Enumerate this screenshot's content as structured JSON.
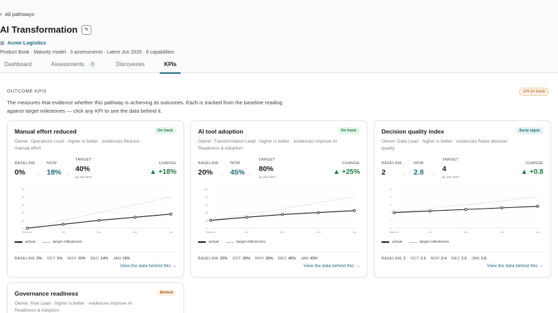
{
  "nav": {
    "back_label": "All pathways"
  },
  "header": {
    "title": "AI Transformation",
    "org": "Acme Logistics",
    "meta": "Product Book · Maturity model · 3 assessments · Latest Jun 2026 · 6 capabilities"
  },
  "tabs": [
    {
      "label": "Dashboard",
      "count": null
    },
    {
      "label": "Assessments",
      "count": "3"
    },
    {
      "label": "Discoveries",
      "count": null
    },
    {
      "label": "KPIs",
      "count": null,
      "active": true
    }
  ],
  "section": {
    "label": "OUTCOME KPIS",
    "badge": "2/4 on track",
    "intro": "The measures that evidence whether this pathway is achieving its outcomes. Each is tracked from the baseline reading against target milestones — click any KPI to see the data behind it."
  },
  "labels": {
    "baseline": "BASELINE",
    "now": "NOW",
    "target": "TARGET",
    "change": "CHANGE",
    "legend_actual": "actual",
    "legend_target": "target milestones",
    "view_link": "View the data behind this →"
  },
  "colors": {
    "accent": "#1f6c7a",
    "positive": "#1d7a43",
    "warning": "#a45a14"
  },
  "cards": [
    {
      "title": "Manual effort reduced",
      "status": "On track",
      "status_kind": "green",
      "owner": "Owner: Operations Lead · higher is better · evidences Reduce manual effort",
      "baseline": "0%",
      "now": "18%",
      "target": "40%",
      "target_by": "by Jan 2027",
      "change": "▲ +18%",
      "readings": [
        {
          "k": "BASELINE",
          "v": "0%"
        },
        {
          "k": "OCT",
          "v": "5%"
        },
        {
          "k": "NOV",
          "v": "10%"
        },
        {
          "k": "DEC",
          "v": "14%"
        },
        {
          "k": "JAN",
          "v": "18%"
        }
      ],
      "chart_data": {
        "type": "line",
        "x": [
          "Baseline",
          "Oct",
          "Nov",
          "Dec",
          "Jan"
        ],
        "series": [
          {
            "name": "actual",
            "values": [
              0,
              5,
              10,
              14,
              18
            ]
          },
          {
            "name": "target milestones",
            "values": [
              0,
              10,
              20,
              30,
              40
            ]
          }
        ],
        "yticks": [
          "0",
          "10",
          "20",
          "30",
          "40",
          "50"
        ],
        "ylim": [
          0,
          50
        ]
      }
    },
    {
      "title": "AI tool adoption",
      "status": "On track",
      "status_kind": "green",
      "owner": "Owner: Transformation Lead · higher is better · evidences Improve AI Readiness & Adoption",
      "baseline": "20%",
      "now": "45%",
      "target": "80%",
      "target_by": "by Jan 2027",
      "change": "▲ +25%",
      "readings": [
        {
          "k": "BASELINE",
          "v": "20%"
        },
        {
          "k": "OCT",
          "v": "28%"
        },
        {
          "k": "NOV",
          "v": "35%"
        },
        {
          "k": "DEC",
          "v": "40%"
        },
        {
          "k": "JAN",
          "v": "45%"
        }
      ],
      "chart_data": {
        "type": "line",
        "x": [
          "Baseline",
          "Oct",
          "Nov",
          "Dec",
          "Jan"
        ],
        "series": [
          {
            "name": "actual",
            "values": [
              20,
              28,
              35,
              40,
              45
            ]
          },
          {
            "name": "target milestones",
            "values": [
              20,
              35,
              50,
              65,
              80
            ]
          }
        ],
        "yticks": [
          "0",
          "20",
          "40",
          "60",
          "80",
          "100"
        ],
        "ylim": [
          0,
          100
        ]
      }
    },
    {
      "title": "Decision quality index",
      "status": "Early signs",
      "status_kind": "teal",
      "owner": "Owner: Data Lead · higher is better · evidences Raise decision quality",
      "baseline": "2",
      "now": "2.8",
      "target": "4",
      "target_by": "by Jan 2027",
      "change": "▲ +0.8",
      "readings": [
        {
          "k": "BASELINE",
          "v": "2"
        },
        {
          "k": "OCT",
          "v": "2.2"
        },
        {
          "k": "NOV",
          "v": "2.4"
        },
        {
          "k": "DEC",
          "v": "2.6"
        },
        {
          "k": "JAN",
          "v": "2.8"
        }
      ],
      "chart_data": {
        "type": "line",
        "x": [
          "Baseline",
          "Oct",
          "Nov",
          "Dec",
          "Jan"
        ],
        "series": [
          {
            "name": "actual",
            "values": [
              2,
              2.2,
              2.4,
              2.6,
              2.8
            ]
          },
          {
            "name": "target milestones",
            "values": [
              2,
              2.5,
              3,
              3.5,
              4
            ]
          }
        ],
        "yticks": [
          "0",
          "1",
          "2",
          "3",
          "4",
          "5"
        ],
        "ylim": [
          0,
          5
        ]
      }
    },
    {
      "title": "Governance readiness",
      "status": "Behind",
      "status_kind": "orange",
      "owner": "Owner: Risk Lead · higher is better · evidences Improve AI Readiness & Adoption"
    }
  ]
}
